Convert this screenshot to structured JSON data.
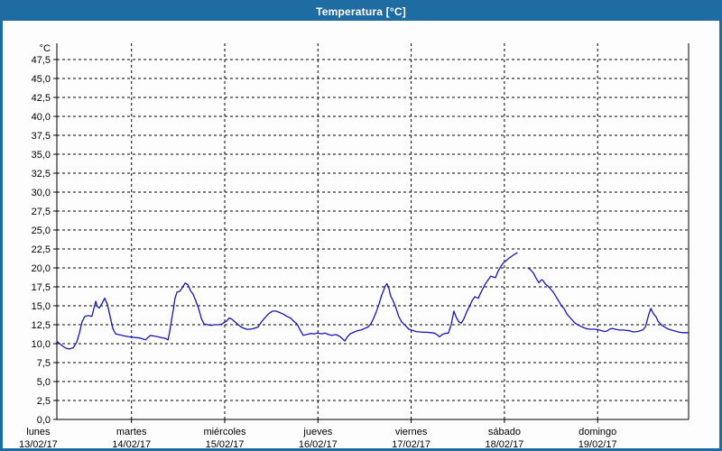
{
  "window": {
    "title": "Temperatura [°C]",
    "frame_color": "#1f6ca3",
    "titlebar_text_color": "#ffffff",
    "background_color": "#fdfdfd"
  },
  "chart_data": {
    "type": "line",
    "title": "Temperatura [°C]",
    "ylabel": "°C",
    "ylim": [
      0,
      47.5
    ],
    "y_tick_step": 2.5,
    "y_tick_labels": [
      "0,0",
      "2,5",
      "5,0",
      "7,5",
      "10,0",
      "12,5",
      "15,0",
      "17,5",
      "20,0",
      "22,5",
      "25,0",
      "27,5",
      "30,0",
      "32,5",
      "35,0",
      "37,5",
      "40,0",
      "42,5",
      "45,0",
      "47,5"
    ],
    "grid": "dashed",
    "grid_color": "#000000",
    "axis_color": "#000000",
    "line_color": "#1717b8",
    "x_unit": "hours since Monday 00:00",
    "x_range_hours": [
      4.8,
      167.4
    ],
    "x_days": [
      {
        "label": "lunes",
        "date": "13/02/17",
        "hour": 0
      },
      {
        "label": "martes",
        "date": "14/02/17",
        "hour": 24
      },
      {
        "label": "miércoles",
        "date": "15/02/17",
        "hour": 48
      },
      {
        "label": "jueves",
        "date": "16/02/17",
        "hour": 72
      },
      {
        "label": "viernes",
        "date": "17/02/17",
        "hour": 96
      },
      {
        "label": "sábado",
        "date": "18/02/17",
        "hour": 120
      },
      {
        "label": "domingo",
        "date": "19/02/17",
        "hour": 144
      }
    ],
    "series": [
      {
        "name": "Temperatura",
        "note": "data gap between hour 123.3 and 126.1 (early Saturday)",
        "segments": [
          [
            [
              4.8,
              10.3
            ],
            [
              5.5,
              10.0
            ],
            [
              6.2,
              9.7
            ],
            [
              7.1,
              9.4
            ],
            [
              8.0,
              9.3
            ],
            [
              9.0,
              9.45
            ],
            [
              9.9,
              10.2
            ],
            [
              10.6,
              11.4
            ],
            [
              11.3,
              12.9
            ],
            [
              12.0,
              13.6
            ],
            [
              12.9,
              13.7
            ],
            [
              13.8,
              13.6
            ],
            [
              14.3,
              14.6
            ],
            [
              14.8,
              15.6
            ],
            [
              15.2,
              14.9
            ],
            [
              15.7,
              14.7
            ],
            [
              16.4,
              15.3
            ],
            [
              17.1,
              16.0
            ],
            [
              17.8,
              15.2
            ],
            [
              18.5,
              13.6
            ],
            [
              19.2,
              12.0
            ],
            [
              19.9,
              11.3
            ],
            [
              20.6,
              11.2
            ],
            [
              21.5,
              11.1
            ],
            [
              22.4,
              11.0
            ],
            [
              23.4,
              10.9
            ],
            [
              24.3,
              10.85
            ],
            [
              25.2,
              10.8
            ],
            [
              26.2,
              10.75
            ],
            [
              27.1,
              10.6
            ],
            [
              27.6,
              10.5
            ],
            [
              28.2,
              10.8
            ],
            [
              28.9,
              11.1
            ],
            [
              29.9,
              11.0
            ],
            [
              30.8,
              10.9
            ],
            [
              31.7,
              10.8
            ],
            [
              32.7,
              10.7
            ],
            [
              33.4,
              10.5
            ],
            [
              33.8,
              11.5
            ],
            [
              34.3,
              13.1
            ],
            [
              34.8,
              14.6
            ],
            [
              35.2,
              16.0
            ],
            [
              35.7,
              16.8
            ],
            [
              36.4,
              16.9
            ],
            [
              37.1,
              17.4
            ],
            [
              37.8,
              18.0
            ],
            [
              38.5,
              17.8
            ],
            [
              39.2,
              17.0
            ],
            [
              39.9,
              16.5
            ],
            [
              40.6,
              15.6
            ],
            [
              41.3,
              14.6
            ],
            [
              42.0,
              13.3
            ],
            [
              42.7,
              12.6
            ],
            [
              43.6,
              12.5
            ],
            [
              44.5,
              12.4
            ],
            [
              45.4,
              12.5
            ],
            [
              46.4,
              12.5
            ],
            [
              47.3,
              12.6
            ],
            [
              48.5,
              13.0
            ],
            [
              49.2,
              13.4
            ],
            [
              49.9,
              13.2
            ],
            [
              50.8,
              12.8
            ],
            [
              51.7,
              12.4
            ],
            [
              52.6,
              12.1
            ],
            [
              53.6,
              11.9
            ],
            [
              54.5,
              11.9
            ],
            [
              55.4,
              12.0
            ],
            [
              56.6,
              12.2
            ],
            [
              57.5,
              12.9
            ],
            [
              58.5,
              13.5
            ],
            [
              59.4,
              14.0
            ],
            [
              60.3,
              14.3
            ],
            [
              61.2,
              14.3
            ],
            [
              62.2,
              14.1
            ],
            [
              63.1,
              13.9
            ],
            [
              64.0,
              13.6
            ],
            [
              64.9,
              13.4
            ],
            [
              65.9,
              12.9
            ],
            [
              66.6,
              12.6
            ],
            [
              67.3,
              11.9
            ],
            [
              68.2,
              11.1
            ],
            [
              69.1,
              11.2
            ],
            [
              70.1,
              11.35
            ],
            [
              71.0,
              11.3
            ],
            [
              71.9,
              11.4
            ],
            [
              72.9,
              11.3
            ],
            [
              73.8,
              11.4
            ],
            [
              74.7,
              11.2
            ],
            [
              75.6,
              11.1
            ],
            [
              76.6,
              11.2
            ],
            [
              77.5,
              11.0
            ],
            [
              78.2,
              10.7
            ],
            [
              78.9,
              10.35
            ],
            [
              79.6,
              10.9
            ],
            [
              80.3,
              11.3
            ],
            [
              81.2,
              11.5
            ],
            [
              82.1,
              11.7
            ],
            [
              83.1,
              11.8
            ],
            [
              84.0,
              12.0
            ],
            [
              84.9,
              12.2
            ],
            [
              85.6,
              12.6
            ],
            [
              86.3,
              13.3
            ],
            [
              87.0,
              14.2
            ],
            [
              87.7,
              15.2
            ],
            [
              88.4,
              16.4
            ],
            [
              88.9,
              17.0
            ],
            [
              89.3,
              17.6
            ],
            [
              89.8,
              17.9
            ],
            [
              90.3,
              17.2
            ],
            [
              90.7,
              16.3
            ],
            [
              91.4,
              15.6
            ],
            [
              92.1,
              14.7
            ],
            [
              92.8,
              13.6
            ],
            [
              93.5,
              12.9
            ],
            [
              94.5,
              12.4
            ],
            [
              95.4,
              11.9
            ],
            [
              96.3,
              11.75
            ],
            [
              97.3,
              11.6
            ],
            [
              98.2,
              11.55
            ],
            [
              99.1,
              11.5
            ],
            [
              100.0,
              11.5
            ],
            [
              101.0,
              11.45
            ],
            [
              101.9,
              11.4
            ],
            [
              102.6,
              11.2
            ],
            [
              103.3,
              10.9
            ],
            [
              104.0,
              11.2
            ],
            [
              104.7,
              11.35
            ],
            [
              105.6,
              11.4
            ],
            [
              106.3,
              12.5
            ],
            [
              107.0,
              14.3
            ],
            [
              107.5,
              13.6
            ],
            [
              108.2,
              12.9
            ],
            [
              108.9,
              12.7
            ],
            [
              109.6,
              13.3
            ],
            [
              110.3,
              14.2
            ],
            [
              111.0,
              14.9
            ],
            [
              111.7,
              15.7
            ],
            [
              112.4,
              16.2
            ],
            [
              112.8,
              16.1
            ],
            [
              113.3,
              16.0
            ],
            [
              113.7,
              16.5
            ],
            [
              114.4,
              17.2
            ],
            [
              115.1,
              17.9
            ],
            [
              115.8,
              18.4
            ],
            [
              116.5,
              18.9
            ],
            [
              117.2,
              18.8
            ],
            [
              117.7,
              18.7
            ],
            [
              118.4,
              19.6
            ],
            [
              119.1,
              20.2
            ],
            [
              119.8,
              20.7
            ],
            [
              120.5,
              21.0
            ],
            [
              121.2,
              21.3
            ],
            [
              121.9,
              21.55
            ],
            [
              122.6,
              21.8
            ],
            [
              123.3,
              22.0
            ]
          ],
          [
            [
              126.1,
              20.0
            ],
            [
              126.8,
              19.7
            ],
            [
              127.5,
              19.3
            ],
            [
              128.2,
              18.6
            ],
            [
              128.9,
              18.05
            ],
            [
              129.6,
              18.45
            ],
            [
              130.0,
              18.3
            ],
            [
              130.5,
              17.9
            ],
            [
              131.2,
              17.6
            ],
            [
              131.9,
              17.2
            ],
            [
              132.6,
              16.8
            ],
            [
              133.3,
              16.2
            ],
            [
              134.0,
              15.6
            ],
            [
              134.7,
              15.0
            ],
            [
              135.4,
              14.6
            ],
            [
              136.1,
              13.9
            ],
            [
              136.8,
              13.5
            ],
            [
              137.5,
              13.1
            ],
            [
              138.2,
              12.7
            ],
            [
              138.9,
              12.5
            ],
            [
              139.6,
              12.3
            ],
            [
              140.5,
              12.1
            ],
            [
              141.4,
              11.95
            ],
            [
              142.3,
              11.9
            ],
            [
              143.3,
              11.9
            ],
            [
              144.2,
              11.85
            ],
            [
              145.1,
              11.7
            ],
            [
              145.8,
              11.6
            ],
            [
              146.5,
              11.7
            ],
            [
              147.2,
              11.95
            ],
            [
              147.9,
              12.0
            ],
            [
              148.6,
              11.9
            ],
            [
              149.5,
              11.8
            ],
            [
              150.5,
              11.8
            ],
            [
              151.4,
              11.75
            ],
            [
              152.3,
              11.7
            ],
            [
              153.2,
              11.55
            ],
            [
              154.2,
              11.6
            ],
            [
              154.9,
              11.7
            ],
            [
              155.6,
              11.8
            ],
            [
              156.3,
              12.2
            ],
            [
              156.7,
              13.0
            ],
            [
              157.2,
              13.9
            ],
            [
              157.7,
              14.65
            ],
            [
              158.1,
              14.2
            ],
            [
              158.6,
              13.8
            ],
            [
              159.1,
              13.5
            ],
            [
              159.5,
              13.0
            ],
            [
              160.2,
              12.6
            ],
            [
              160.9,
              12.3
            ],
            [
              161.6,
              12.1
            ],
            [
              162.3,
              11.9
            ],
            [
              163.0,
              11.8
            ],
            [
              163.7,
              11.7
            ],
            [
              164.4,
              11.6
            ],
            [
              165.1,
              11.5
            ],
            [
              166.0,
              11.45
            ],
            [
              166.7,
              11.45
            ],
            [
              167.4,
              11.45
            ]
          ]
        ]
      }
    ]
  }
}
